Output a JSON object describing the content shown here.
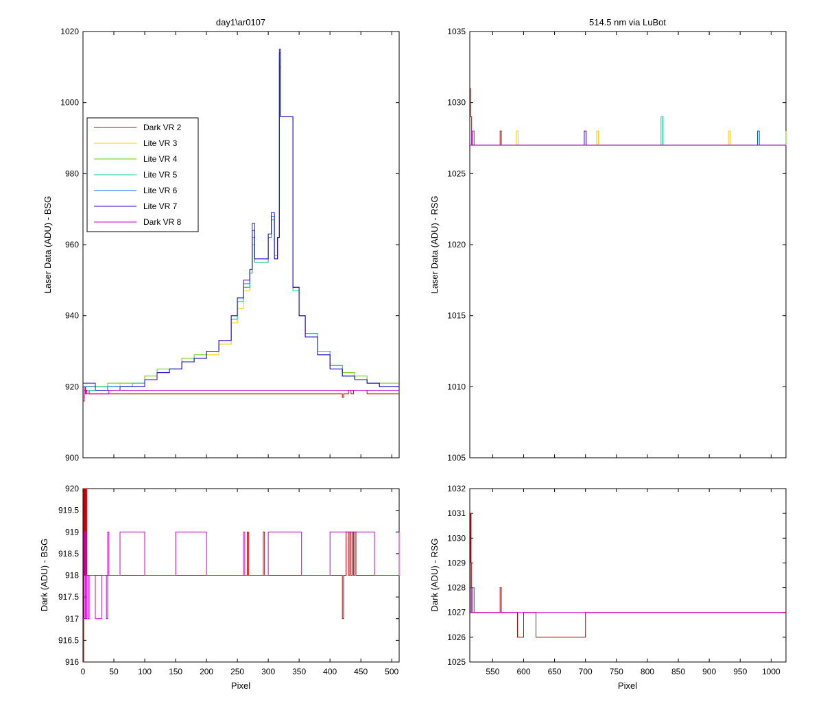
{
  "background_color": "#ffffff",
  "series_colors": {
    "dark_vr2": "#cc0000",
    "lite_vr3": "#ffcc00",
    "lite_vr4": "#66cc00",
    "lite_vr5": "#00cc99",
    "lite_vr6": "#0066ff",
    "lite_vr7": "#3300cc",
    "dark_vr8": "#cc00cc"
  },
  "chart_data": [
    {
      "id": "top_left",
      "type": "line",
      "title": "day1\\ar0107",
      "xlabel": "",
      "ylabel": "Laser Data (ADU) - BSG",
      "xlim": [
        0,
        512
      ],
      "ylim": [
        900,
        1020
      ],
      "xticks": [
        0,
        50,
        100,
        150,
        200,
        250,
        300,
        350,
        400,
        450,
        500
      ],
      "xtick_labels_visible": false,
      "yticks": [
        900,
        920,
        940,
        960,
        980,
        1000,
        1020
      ],
      "grid": false,
      "legend": {
        "position": "upper-left",
        "entries": [
          {
            "label": "Dark VR 2",
            "color": "#cc0000"
          },
          {
            "label": "Lite VR 3",
            "color": "#ffcc00"
          },
          {
            "label": "Lite VR 4",
            "color": "#66cc00"
          },
          {
            "label": "Lite VR 5",
            "color": "#00cc99"
          },
          {
            "label": "Lite VR 6",
            "color": "#0066ff"
          },
          {
            "label": "Lite VR 7",
            "color": "#3300cc"
          },
          {
            "label": "Dark VR 8",
            "color": "#cc00cc"
          }
        ]
      },
      "series": [
        {
          "name": "Dark VR 2",
          "color": "#cc0000",
          "x": [
            0,
            2,
            4,
            6,
            10,
            20,
            60,
            200,
            300,
            410,
            418,
            420,
            422,
            424,
            430,
            434,
            438,
            460,
            512
          ],
          "y": [
            916,
            920,
            918,
            919,
            918,
            918,
            918,
            918,
            918,
            918,
            918,
            917,
            918,
            918,
            919,
            918,
            919,
            918,
            918
          ]
        },
        {
          "name": "Lite VR 3",
          "color": "#ffcc00",
          "x": [
            0,
            20,
            40,
            60,
            80,
            100,
            120,
            140,
            160,
            180,
            200,
            220,
            240,
            250,
            260,
            270,
            274,
            278
          ],
          "y": [
            920,
            920,
            920,
            921,
            921,
            922,
            924,
            925,
            927,
            928,
            929,
            932,
            938,
            942,
            947,
            952,
            960,
            955
          ]
        },
        {
          "name": "Lite VR 4",
          "color": "#66cc00",
          "x": [
            0,
            20,
            40,
            60,
            80,
            100,
            120,
            140,
            160,
            180,
            200,
            220,
            240,
            250,
            260,
            270,
            274,
            278,
            300,
            305,
            310,
            315,
            318,
            320,
            340,
            350,
            360,
            380,
            400,
            420,
            440,
            460,
            480,
            500,
            512
          ],
          "y": [
            920,
            920,
            921,
            921,
            921,
            923,
            925,
            925,
            928,
            929,
            930,
            933,
            939,
            944,
            948,
            952,
            960,
            955,
            962,
            967,
            957,
            962,
            1010,
            996,
            948,
            940,
            935,
            930,
            926,
            924,
            923,
            921,
            921,
            921,
            921
          ]
        },
        {
          "name": "Lite VR 5",
          "color": "#00cc99",
          "x": [
            0,
            20,
            40,
            60,
            80,
            100,
            120,
            140,
            160,
            180,
            200,
            220,
            240,
            250,
            260,
            270,
            274,
            278,
            300,
            305,
            310,
            315,
            318,
            320,
            340,
            350,
            360,
            380,
            400,
            420,
            440,
            460,
            480,
            500,
            512
          ],
          "y": [
            919,
            920,
            920,
            920,
            921,
            922,
            924,
            925,
            927,
            928,
            930,
            933,
            939,
            944,
            948,
            952,
            962,
            955,
            962,
            968,
            956,
            962,
            1012,
            996,
            947,
            940,
            935,
            930,
            926,
            923,
            922,
            921,
            920,
            920,
            920
          ]
        },
        {
          "name": "Lite VR 6",
          "color": "#0066ff",
          "x": [
            0,
            20,
            40,
            60,
            80,
            100,
            120,
            140,
            160,
            180,
            200,
            220,
            240,
            250,
            260,
            270,
            274,
            278,
            300,
            305,
            310,
            315,
            318,
            320,
            340,
            350,
            360,
            380,
            400,
            420,
            440,
            460,
            480,
            500,
            512
          ],
          "y": [
            920,
            919,
            920,
            920,
            920,
            922,
            924,
            925,
            927,
            928,
            930,
            933,
            940,
            945,
            949,
            953,
            964,
            956,
            963,
            968,
            956,
            962,
            1014,
            996,
            948,
            940,
            934,
            929,
            925,
            923,
            922,
            921,
            920,
            920,
            920
          ]
        },
        {
          "name": "Lite VR 7",
          "color": "#3300cc",
          "x": [
            0,
            20,
            40,
            60,
            80,
            100,
            120,
            140,
            160,
            180,
            200,
            220,
            240,
            250,
            260,
            270,
            274,
            278,
            300,
            305,
            310,
            315,
            318,
            320,
            340,
            350,
            360,
            380,
            400,
            420,
            440,
            460,
            480,
            500,
            512
          ],
          "y": [
            921,
            919,
            919,
            920,
            920,
            922,
            924,
            925,
            927,
            928,
            930,
            933,
            940,
            945,
            950,
            953,
            966,
            956,
            963,
            969,
            956,
            962,
            1015,
            996,
            948,
            940,
            934,
            929,
            925,
            923,
            922,
            921,
            920,
            920,
            920
          ]
        },
        {
          "name": "Dark VR 8",
          "color": "#cc00cc",
          "x": [
            0,
            2,
            6,
            10,
            20,
            30,
            40,
            42,
            60,
            100,
            150,
            200,
            250,
            300,
            350,
            400,
            450,
            512
          ],
          "y": [
            917,
            919,
            918,
            918,
            918,
            918,
            918,
            919,
            919,
            919,
            919,
            919,
            919,
            919,
            919,
            919,
            919,
            919
          ]
        }
      ]
    },
    {
      "id": "top_right",
      "type": "line",
      "title": "514.5 nm via LuBot",
      "xlabel": "",
      "ylabel": "Laser Data (ADU) - RSG",
      "xlim": [
        513,
        1024
      ],
      "ylim": [
        1005,
        1035
      ],
      "xticks": [
        550,
        600,
        650,
        700,
        750,
        800,
        850,
        900,
        950,
        1000
      ],
      "xtick_labels_visible": false,
      "yticks": [
        1005,
        1010,
        1015,
        1020,
        1025,
        1030,
        1035
      ],
      "grid": false,
      "series": [
        {
          "name": "Dark VR 2",
          "color": "#cc0000",
          "x": [
            513,
            514,
            516,
            520,
            560,
            562,
            564,
            600,
            700,
            800,
            900,
            1024
          ],
          "y": [
            1031,
            1029,
            1027,
            1027,
            1027,
            1028,
            1027,
            1027,
            1027,
            1027,
            1027,
            1027
          ]
        },
        {
          "name": "Lite VR 3",
          "color": "#ffcc00",
          "x": [
            513,
            585,
            588,
            591,
            715,
            718,
            721,
            928,
            931,
            934,
            1024
          ],
          "y": [
            1027,
            1027,
            1028,
            1027,
            1027,
            1028,
            1027,
            1027,
            1028,
            1027,
            1027
          ]
        },
        {
          "name": "Lite VR 4",
          "color": "#66cc00",
          "x": [
            513,
            800,
            900,
            1019,
            1024
          ],
          "y": [
            1027,
            1027,
            1027,
            1027,
            1028
          ]
        },
        {
          "name": "Lite VR 5",
          "color": "#00cc99",
          "x": [
            513,
            819,
            822,
            825,
            1024
          ],
          "y": [
            1027,
            1027,
            1029,
            1027,
            1027
          ]
        },
        {
          "name": "Lite VR 6",
          "color": "#0066ff",
          "x": [
            513,
            975,
            978,
            981,
            1024
          ],
          "y": [
            1027,
            1027,
            1028,
            1027,
            1027
          ]
        },
        {
          "name": "Lite VR 7",
          "color": "#3300cc",
          "x": [
            513,
            695,
            698,
            701,
            1024
          ],
          "y": [
            1027,
            1027,
            1028,
            1027,
            1027
          ]
        },
        {
          "name": "Dark VR 8",
          "color": "#cc00cc",
          "x": [
            513,
            517,
            520,
            600,
            700,
            800,
            900,
            1024
          ],
          "y": [
            1027,
            1028,
            1027,
            1027,
            1027,
            1027,
            1027,
            1027
          ]
        }
      ]
    },
    {
      "id": "bottom_left",
      "type": "line",
      "title": "",
      "xlabel": "Pixel",
      "ylabel": "Dark (ADU) - BSG",
      "xlim": [
        0,
        512
      ],
      "ylim": [
        916,
        920
      ],
      "xticks": [
        0,
        50,
        100,
        150,
        200,
        250,
        300,
        350,
        400,
        450,
        500
      ],
      "xtick_labels_visible": true,
      "yticks": [
        916,
        916.5,
        917,
        917.5,
        918,
        918.5,
        919,
        919.5,
        920
      ],
      "ytick_labels": [
        "916",
        "916.5",
        "917",
        "917.5",
        "918",
        "918.5",
        "919",
        "919.5",
        "920"
      ],
      "grid": false,
      "series": [
        {
          "name": "Dark VR 2",
          "color": "#cc0000",
          "x": [
            0,
            1,
            2,
            3,
            4,
            5,
            6,
            8,
            60,
            200,
            264,
            266,
            268,
            290,
            292,
            294,
            418,
            420,
            422,
            424,
            426,
            430,
            432,
            434,
            436,
            438,
            440,
            442,
            512
          ],
          "y": [
            916,
            920,
            918,
            920,
            918,
            920,
            918,
            918,
            918,
            918,
            918,
            919,
            918,
            918,
            919,
            918,
            918,
            917,
            918,
            918,
            919,
            918,
            919,
            918,
            919,
            918,
            919,
            918,
            918
          ]
        },
        {
          "name": "Dark VR 8",
          "color": "#cc00cc",
          "x": [
            0,
            2,
            4,
            6,
            8,
            10,
            20,
            30,
            38,
            40,
            42,
            60,
            100,
            150,
            200,
            260,
            262,
            300,
            350,
            354,
            400,
            450,
            470,
            472,
            512
          ],
          "y": [
            917,
            919,
            917,
            918,
            917,
            918,
            917,
            918,
            917,
            919,
            918,
            919,
            918,
            919,
            918,
            919,
            918,
            919,
            919,
            918,
            919,
            919,
            919,
            918,
            919
          ]
        }
      ]
    },
    {
      "id": "bottom_right",
      "type": "line",
      "title": "",
      "xlabel": "Pixel",
      "ylabel": "Dark (ADU) - RSG",
      "xlim": [
        513,
        1024
      ],
      "ylim": [
        1025,
        1032
      ],
      "xticks": [
        550,
        600,
        650,
        700,
        750,
        800,
        850,
        900,
        950,
        1000
      ],
      "xtick_labels_visible": true,
      "yticks": [
        1025,
        1026,
        1027,
        1028,
        1029,
        1030,
        1031,
        1032
      ],
      "grid": false,
      "series": [
        {
          "name": "Dark VR 2",
          "color": "#cc0000",
          "x": [
            513,
            514,
            515,
            516,
            518,
            520,
            560,
            562,
            564,
            566,
            580,
            590,
            600,
            620,
            700,
            800,
            900,
            1024
          ],
          "y": [
            1027,
            1031,
            1029,
            1028,
            1027,
            1027,
            1027,
            1028,
            1027,
            1027,
            1027,
            1026,
            1027,
            1026,
            1027,
            1027,
            1027,
            1027
          ]
        },
        {
          "name": "Dark VR 8",
          "color": "#cc00cc",
          "x": [
            513,
            514,
            516,
            518,
            520,
            600,
            700,
            800,
            900,
            1000,
            1024
          ],
          "y": [
            1027,
            1028,
            1027,
            1028,
            1027,
            1027,
            1027,
            1027,
            1027,
            1027,
            1027
          ]
        }
      ]
    }
  ]
}
